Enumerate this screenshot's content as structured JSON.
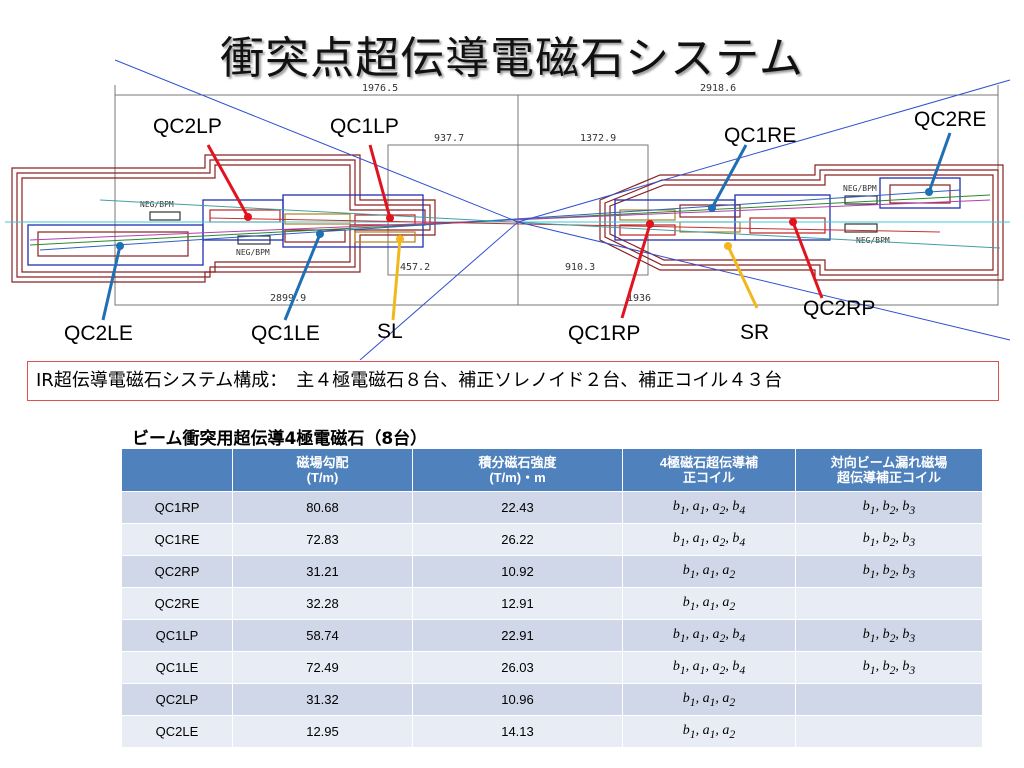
{
  "title": "衝突点超伝導電磁石システム",
  "drawing_dims": [
    "1976.5",
    "2918.6",
    "937.7",
    "1372.9",
    "457.2",
    "910.3",
    "2899.9",
    "1936"
  ],
  "drawing_tags": [
    "NEG/BPM",
    "NEG/BPM",
    "NEG/BPM",
    "NEG/BPM"
  ],
  "labels": {
    "qc2lp": "QC2LP",
    "qc1lp": "QC1LP",
    "qc1re": "QC1RE",
    "qc2re": "QC2RE",
    "qc2rp": "QC2RP",
    "qc2le": "QC2LE",
    "qc1le": "QC1LE",
    "sl": "SL",
    "qc1rp": "QC1RP",
    "sr": "SR"
  },
  "colors": {
    "callout_red": "#e0141e",
    "callout_blue": "#1f6fb4",
    "callout_yellow": "#f2b81a",
    "table_header": "#4f81bd",
    "row_odd": "#cfd7e8",
    "row_even": "#e8ecf4"
  },
  "summary": "IR超伝導電磁石システム構成：　主４極電磁石８台、補正ソレノイド２台、補正コイル４３台",
  "table_title": "ビーム衝突用超伝導4極電磁石（8台）",
  "table": {
    "headers": [
      "",
      "磁場勾配\n(T/m)",
      "積分磁石強度\n(T/m)・m",
      "4極磁石超伝導補\n正コイル",
      "対向ビーム漏れ磁場\n超伝導補正コイル"
    ],
    "rows": [
      [
        "QC1RP",
        "80.68",
        "22.43",
        "b1, a1, a2, b4",
        "b1, b2, b3"
      ],
      [
        "QC1RE",
        "72.83",
        "26.22",
        "b1, a1, a2, b4",
        "b1, b2, b3"
      ],
      [
        "QC2RP",
        "31.21",
        "10.92",
        "b1, a1, a2",
        "b1, b2, b3"
      ],
      [
        "QC2RE",
        "32.28",
        "12.91",
        "b1, a1, a2",
        ""
      ],
      [
        "QC1LP",
        "58.74",
        "22.91",
        "b1, a1, a2, b4",
        "b1, b2, b3"
      ],
      [
        "QC1LE",
        "72.49",
        "26.03",
        "b1, a1, a2, b4",
        "b1, b2, b3"
      ],
      [
        "QC2LP",
        "31.32",
        "10.96",
        "b1, a1, a2",
        ""
      ],
      [
        "QC2LE",
        "12.95",
        "14.13",
        "b1, a1, a2",
        ""
      ]
    ]
  }
}
